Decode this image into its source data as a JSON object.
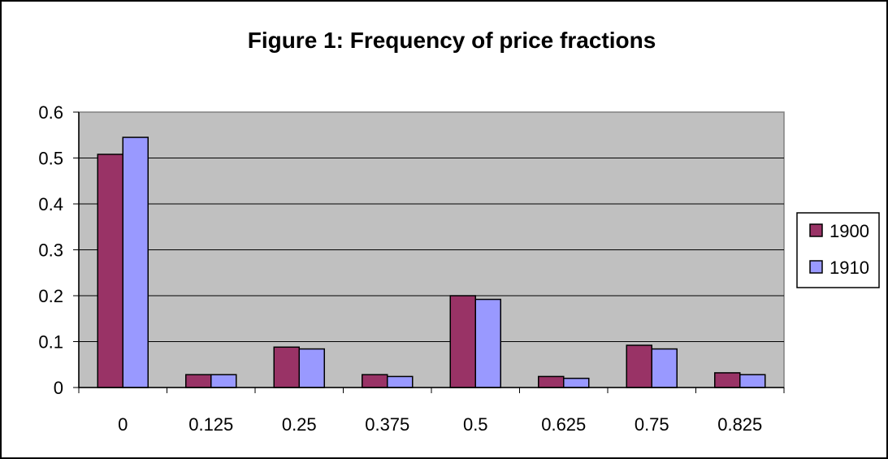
{
  "chart_data": {
    "type": "bar",
    "title": "Figure 1: Frequency of price fractions",
    "xlabel": "",
    "ylabel": "",
    "categories": [
      "0",
      "0.125",
      "0.25",
      "0.375",
      "0.5",
      "0.625",
      "0.75",
      "0.825"
    ],
    "series": [
      {
        "name": "1900",
        "color": "#993366",
        "values": [
          0.508,
          0.028,
          0.088,
          0.028,
          0.2,
          0.024,
          0.092,
          0.032
        ]
      },
      {
        "name": "1910",
        "color": "#9999FF",
        "values": [
          0.545,
          0.028,
          0.084,
          0.024,
          0.192,
          0.02,
          0.084,
          0.028
        ]
      }
    ],
    "ylim": [
      0,
      0.6
    ],
    "yticks": [
      "0",
      "0.1",
      "0.2",
      "0.3",
      "0.4",
      "0.5",
      "0.6"
    ],
    "grid": true,
    "plot_background": "#C0C0C0",
    "legend": "right"
  }
}
